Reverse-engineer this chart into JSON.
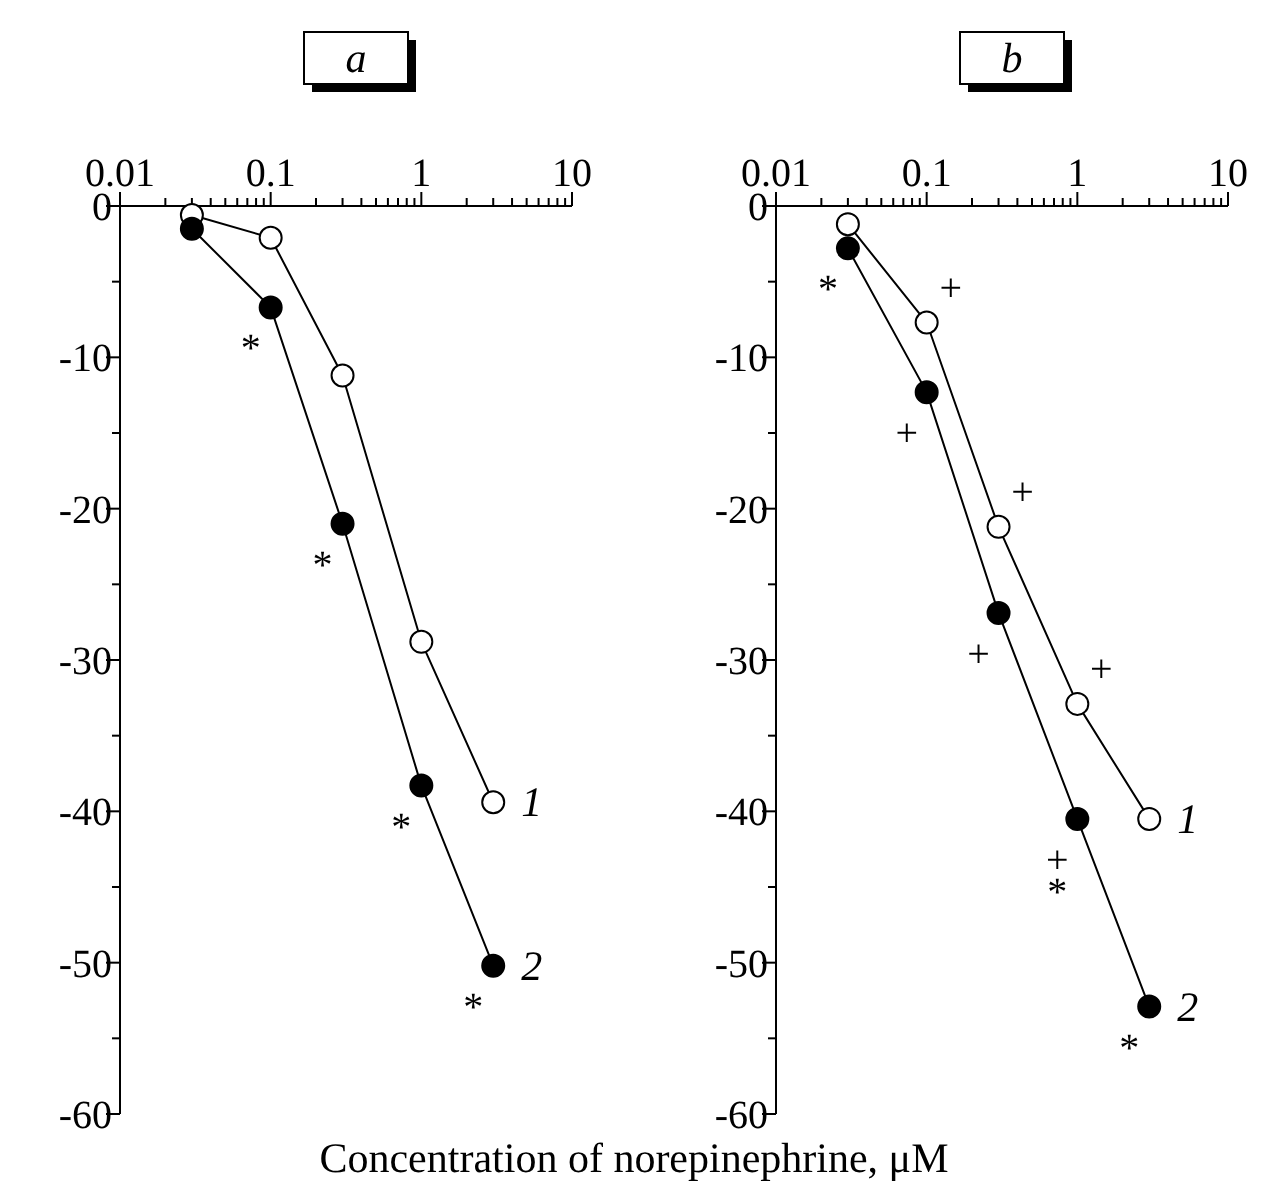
{
  "chart_data": [
    {
      "type": "line",
      "title": "a",
      "xlabel": "Concentration of norepinephrine, μM",
      "log": "x",
      "marker": "circle",
      "grid": false,
      "xlim": [
        0.01,
        10
      ],
      "ylim": [
        -60,
        0
      ],
      "xticks": [
        0.01,
        {
          "value": 0.02,
          "label": null
        },
        {
          "value": 0.03,
          "label": null
        },
        {
          "value": 0.04,
          "label": null
        },
        {
          "value": 0.05,
          "label": null
        },
        {
          "value": 0.06,
          "label": null
        },
        {
          "value": 0.07,
          "label": null
        },
        {
          "value": 0.08,
          "label": null
        },
        {
          "value": 0.09,
          "label": null
        },
        0.1,
        {
          "value": 0.2,
          "label": null
        },
        {
          "value": 0.3,
          "label": null
        },
        {
          "value": 0.4,
          "label": null
        },
        {
          "value": 0.5,
          "label": null
        },
        {
          "value": 0.6,
          "label": null
        },
        {
          "value": 0.7,
          "label": null
        },
        {
          "value": 0.8,
          "label": null
        },
        {
          "value": 0.9,
          "label": null
        },
        1,
        {
          "value": 2,
          "label": null
        },
        {
          "value": 3,
          "label": null
        },
        {
          "value": 4,
          "label": null
        },
        {
          "value": 5,
          "label": null
        },
        {
          "value": 6,
          "label": null
        },
        {
          "value": 7,
          "label": null
        },
        {
          "value": 8,
          "label": null
        },
        {
          "value": 9,
          "label": null
        },
        10
      ],
      "yticks": [
        -60,
        {
          "value": -55,
          "label": null
        },
        -50,
        {
          "value": -45,
          "label": null
        },
        -40,
        {
          "value": -35,
          "label": null
        },
        -30,
        {
          "value": -25,
          "label": null
        },
        -20,
        {
          "value": -15,
          "label": null
        },
        -10,
        {
          "value": -5,
          "label": null
        },
        0
      ],
      "x": [
        0.03,
        0.1,
        0.3,
        1,
        3
      ],
      "series": [
        {
          "name": "1",
          "color": "#ffffff",
          "values": [
            -0.6,
            -2.1,
            -11.2,
            -28.8,
            -39.4
          ]
        },
        {
          "name": "2",
          "color": "#000000",
          "values": [
            -1.5,
            -6.7,
            -21.0,
            -38.3,
            -50.2
          ]
        }
      ],
      "annotations": [
        {
          "text": "*",
          "x": 0.1,
          "y": -6.7
        },
        {
          "text": "*",
          "x": 0.3,
          "y": -21.0
        },
        {
          "text": "*",
          "x": 1,
          "y": -38.3
        },
        {
          "text": "*",
          "x": 3,
          "y": -50.2
        }
      ]
    },
    {
      "type": "line",
      "title": "b",
      "log": "x",
      "marker": "circle",
      "grid": false,
      "xlim": [
        0.01,
        10
      ],
      "ylim": [
        -60,
        0
      ],
      "xticks": [
        0.01,
        {
          "value": 0.02,
          "label": null
        },
        {
          "value": 0.03,
          "label": null
        },
        {
          "value": 0.04,
          "label": null
        },
        {
          "value": 0.05,
          "label": null
        },
        {
          "value": 0.06,
          "label": null
        },
        {
          "value": 0.07,
          "label": null
        },
        {
          "value": 0.08,
          "label": null
        },
        {
          "value": 0.09,
          "label": null
        },
        0.1,
        {
          "value": 0.2,
          "label": null
        },
        {
          "value": 0.3,
          "label": null
        },
        {
          "value": 0.4,
          "label": null
        },
        {
          "value": 0.5,
          "label": null
        },
        {
          "value": 0.6,
          "label": null
        },
        {
          "value": 0.7,
          "label": null
        },
        {
          "value": 0.8,
          "label": null
        },
        {
          "value": 0.9,
          "label": null
        },
        1,
        {
          "value": 2,
          "label": null
        },
        {
          "value": 3,
          "label": null
        },
        {
          "value": 4,
          "label": null
        },
        {
          "value": 5,
          "label": null
        },
        {
          "value": 6,
          "label": null
        },
        {
          "value": 7,
          "label": null
        },
        {
          "value": 8,
          "label": null
        },
        {
          "value": 9,
          "label": null
        },
        10
      ],
      "yticks": [
        -60,
        {
          "value": -55,
          "label": null
        },
        -50,
        {
          "value": -45,
          "label": null
        },
        -40,
        {
          "value": -35,
          "label": null
        },
        -30,
        {
          "value": -25,
          "label": null
        },
        -20,
        {
          "value": -15,
          "label": null
        },
        -10,
        {
          "value": -5,
          "label": null
        },
        0
      ],
      "x": [
        0.03,
        0.1,
        0.3,
        1,
        3
      ],
      "series": [
        {
          "name": "1",
          "color": "#ffffff",
          "values": [
            -1.2,
            -7.7,
            -21.2,
            -32.9,
            -40.5
          ]
        },
        {
          "name": "2",
          "color": "#000000",
          "values": [
            -2.8,
            -12.3,
            -26.9,
            -40.5,
            -52.9
          ]
        }
      ],
      "annotations": [
        {
          "text": "*",
          "x": 0.03,
          "y": -2.8
        },
        {
          "text": "+",
          "x": 0.1,
          "y": -7.7
        },
        {
          "text": "+",
          "x": 0.1,
          "y": -12.3
        },
        {
          "text": "+",
          "x": 0.3,
          "y": -21.2
        },
        {
          "text": "+",
          "x": 0.3,
          "y": -26.9
        },
        {
          "text": "+",
          "x": 1,
          "y": -32.9
        },
        {
          "text": "+",
          "x": 1,
          "y": -40.5
        },
        {
          "text": "*",
          "x": 1,
          "y": -40.5
        },
        {
          "text": "*",
          "x": 3,
          "y": -52.9
        }
      ]
    }
  ]
}
